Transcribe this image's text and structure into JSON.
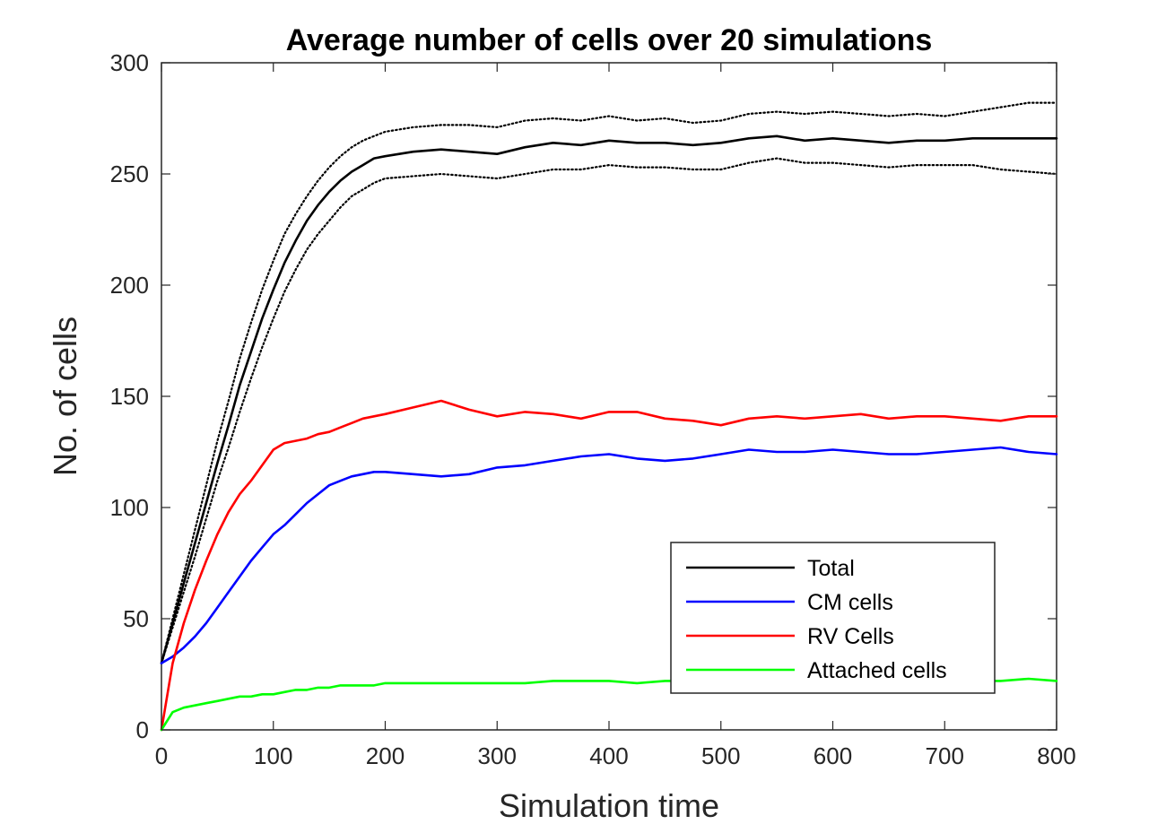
{
  "chart_data": {
    "type": "line",
    "title": "Average number of cells over 20 simulations",
    "xlabel": "Simulation time",
    "ylabel": "No. of cells",
    "xlim": [
      0,
      800
    ],
    "ylim": [
      0,
      300
    ],
    "xticks": [
      0,
      100,
      200,
      300,
      400,
      500,
      600,
      700,
      800
    ],
    "yticks": [
      0,
      50,
      100,
      150,
      200,
      250,
      300
    ],
    "grid": false,
    "legend_position": "bottom-right",
    "series": [
      {
        "name": "Total",
        "color": "#000000",
        "style": "solid",
        "x": [
          0,
          10,
          20,
          30,
          40,
          50,
          60,
          70,
          80,
          90,
          100,
          110,
          120,
          130,
          140,
          150,
          160,
          170,
          180,
          190,
          200,
          225,
          250,
          275,
          300,
          325,
          350,
          375,
          400,
          425,
          450,
          475,
          500,
          525,
          550,
          575,
          600,
          625,
          650,
          675,
          700,
          725,
          750,
          775,
          800
        ],
        "values": [
          30,
          48,
          66,
          84,
          102,
          120,
          137,
          155,
          170,
          185,
          198,
          210,
          220,
          229,
          236,
          242,
          247,
          251,
          254,
          257,
          258,
          260,
          261,
          260,
          259,
          262,
          264,
          263,
          265,
          264,
          264,
          263,
          264,
          266,
          267,
          265,
          266,
          265,
          264,
          265,
          265,
          266,
          266,
          266,
          266
        ]
      },
      {
        "name": "",
        "color": "#000000",
        "style": "dotted",
        "x": [
          0,
          10,
          20,
          30,
          40,
          50,
          60,
          70,
          80,
          90,
          100,
          110,
          120,
          130,
          140,
          150,
          160,
          170,
          180,
          190,
          200,
          225,
          250,
          275,
          300,
          325,
          350,
          375,
          400,
          425,
          450,
          475,
          500,
          525,
          550,
          575,
          600,
          625,
          650,
          675,
          700,
          725,
          750,
          775,
          800
        ],
        "values": [
          30,
          50,
          70,
          90,
          110,
          130,
          148,
          167,
          183,
          198,
          211,
          223,
          232,
          240,
          247,
          253,
          258,
          262,
          265,
          267,
          269,
          271,
          272,
          272,
          271,
          274,
          275,
          274,
          276,
          274,
          275,
          273,
          274,
          277,
          278,
          277,
          278,
          277,
          276,
          277,
          276,
          278,
          280,
          282,
          282
        ]
      },
      {
        "name": "",
        "color": "#000000",
        "style": "dotted",
        "x": [
          0,
          10,
          20,
          30,
          40,
          50,
          60,
          70,
          80,
          90,
          100,
          110,
          120,
          130,
          140,
          150,
          160,
          170,
          180,
          190,
          200,
          225,
          250,
          275,
          300,
          325,
          350,
          375,
          400,
          425,
          450,
          475,
          500,
          525,
          550,
          575,
          600,
          625,
          650,
          675,
          700,
          725,
          750,
          775,
          800
        ],
        "values": [
          30,
          46,
          62,
          78,
          95,
          112,
          127,
          143,
          158,
          172,
          185,
          197,
          207,
          216,
          223,
          229,
          235,
          240,
          243,
          246,
          248,
          249,
          250,
          249,
          248,
          250,
          252,
          252,
          254,
          253,
          253,
          252,
          252,
          255,
          257,
          255,
          255,
          254,
          253,
          254,
          254,
          254,
          252,
          251,
          250
        ]
      },
      {
        "name": "CM cells",
        "color": "#0000ff",
        "style": "solid",
        "x": [
          0,
          10,
          20,
          30,
          40,
          50,
          60,
          70,
          80,
          90,
          100,
          110,
          120,
          130,
          140,
          150,
          160,
          170,
          180,
          190,
          200,
          225,
          250,
          275,
          300,
          325,
          350,
          375,
          400,
          425,
          450,
          475,
          500,
          525,
          550,
          575,
          600,
          625,
          650,
          675,
          700,
          725,
          750,
          775,
          800
        ],
        "values": [
          30,
          33,
          37,
          42,
          48,
          55,
          62,
          69,
          76,
          82,
          88,
          92,
          97,
          102,
          106,
          110,
          112,
          114,
          115,
          116,
          116,
          115,
          114,
          115,
          118,
          119,
          121,
          123,
          124,
          122,
          121,
          122,
          124,
          126,
          125,
          125,
          126,
          125,
          124,
          124,
          125,
          126,
          127,
          125,
          124
        ]
      },
      {
        "name": "RV Cells",
        "color": "#ff0000",
        "style": "solid",
        "x": [
          0,
          10,
          20,
          30,
          40,
          50,
          60,
          70,
          80,
          90,
          100,
          110,
          120,
          130,
          140,
          150,
          160,
          170,
          180,
          190,
          200,
          225,
          250,
          275,
          300,
          325,
          350,
          375,
          400,
          425,
          450,
          475,
          500,
          525,
          550,
          575,
          600,
          625,
          650,
          675,
          700,
          725,
          750,
          775,
          800
        ],
        "values": [
          0,
          30,
          48,
          63,
          76,
          88,
          98,
          106,
          112,
          119,
          126,
          129,
          130,
          131,
          133,
          134,
          136,
          138,
          140,
          141,
          142,
          145,
          148,
          144,
          141,
          143,
          142,
          140,
          143,
          143,
          140,
          139,
          137,
          140,
          141,
          140,
          141,
          142,
          140,
          141,
          141,
          140,
          139,
          141,
          141
        ]
      },
      {
        "name": "Attached cells",
        "color": "#00ff00",
        "style": "solid",
        "x": [
          0,
          10,
          20,
          30,
          40,
          50,
          60,
          70,
          80,
          90,
          100,
          110,
          120,
          130,
          140,
          150,
          160,
          170,
          180,
          190,
          200,
          225,
          250,
          275,
          300,
          325,
          350,
          375,
          400,
          425,
          450,
          475,
          500,
          525,
          550,
          575,
          600,
          625,
          650,
          675,
          700,
          725,
          750,
          775,
          800
        ],
        "values": [
          0,
          8,
          10,
          11,
          12,
          13,
          14,
          15,
          15,
          16,
          16,
          17,
          18,
          18,
          19,
          19,
          20,
          20,
          20,
          20,
          21,
          21,
          21,
          21,
          21,
          21,
          22,
          22,
          22,
          21,
          22,
          22,
          22,
          22,
          22,
          22,
          22,
          22,
          22,
          22,
          22,
          22,
          22,
          23,
          22
        ]
      }
    ]
  }
}
